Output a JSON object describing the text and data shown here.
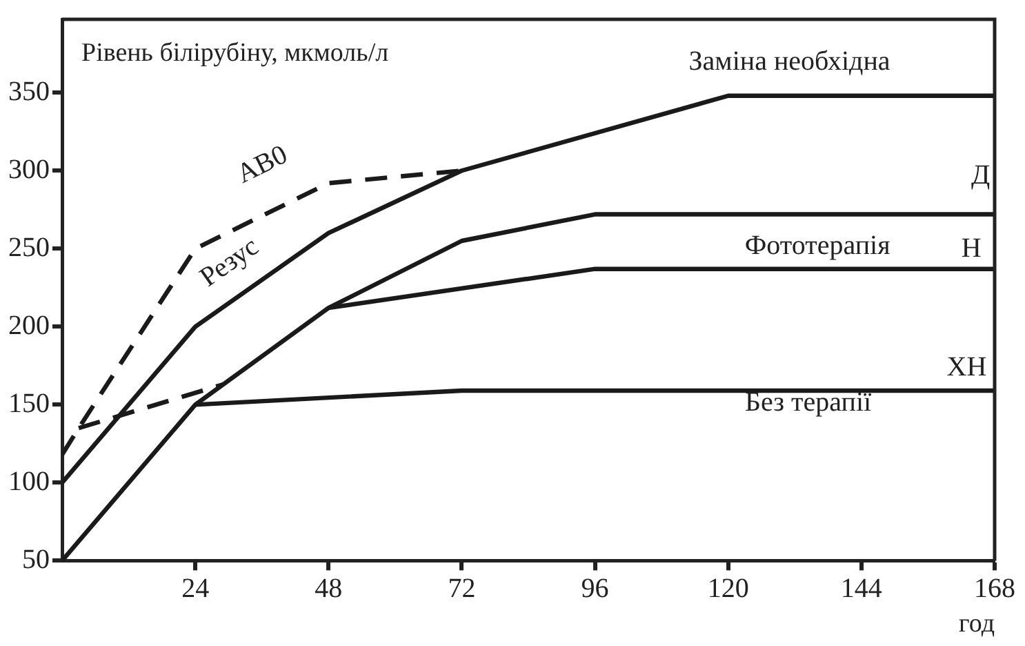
{
  "chart_data": {
    "type": "line",
    "ylabel": "Рівень білірубіну, мкмоль/л",
    "xlabel": "год",
    "xlim": [
      0,
      168
    ],
    "xticks": [
      24,
      48,
      72,
      96,
      120,
      144,
      168
    ],
    "ylim": [
      50,
      397
    ],
    "yticks": [
      50,
      100,
      150,
      200,
      250,
      300,
      350
    ],
    "grid": false,
    "legend": false,
    "marker": "none",
    "series": [
      {
        "color": "#1a1a1a",
        "line_style": "solid",
        "x": [
          0,
          24,
          48,
          72,
          120,
          168
        ],
        "values": [
          100,
          200,
          260,
          300,
          348,
          348
        ]
      },
      {
        "color": "#1a1a1a",
        "line_style": "dashed",
        "x": [
          0,
          3,
          24,
          48,
          72
        ],
        "values": [
          118,
          135,
          250,
          292,
          300
        ]
      },
      {
        "color": "#1a1a1a",
        "line_style": "solid",
        "x": [
          0,
          24,
          48,
          72,
          96,
          168
        ],
        "values": [
          50,
          150,
          212,
          255,
          272,
          272
        ]
      },
      {
        "color": "#1a1a1a",
        "line_style": "solid",
        "x": [
          48,
          96,
          168
        ],
        "values": [
          212,
          237,
          237
        ]
      },
      {
        "color": "#1a1a1a",
        "line_style": "solid",
        "x": [
          24,
          72,
          168
        ],
        "values": [
          150,
          159,
          159
        ]
      },
      {
        "color": "#1a1a1a",
        "line_style": "dashed",
        "x": [
          3,
          29
        ],
        "values": [
          135,
          163
        ]
      }
    ],
    "annotations": [
      "Заміна необхідна",
      "Д",
      "Фототерапія",
      "Н",
      "ХН",
      "Без терапії",
      "АВ0",
      "Резус"
    ]
  }
}
